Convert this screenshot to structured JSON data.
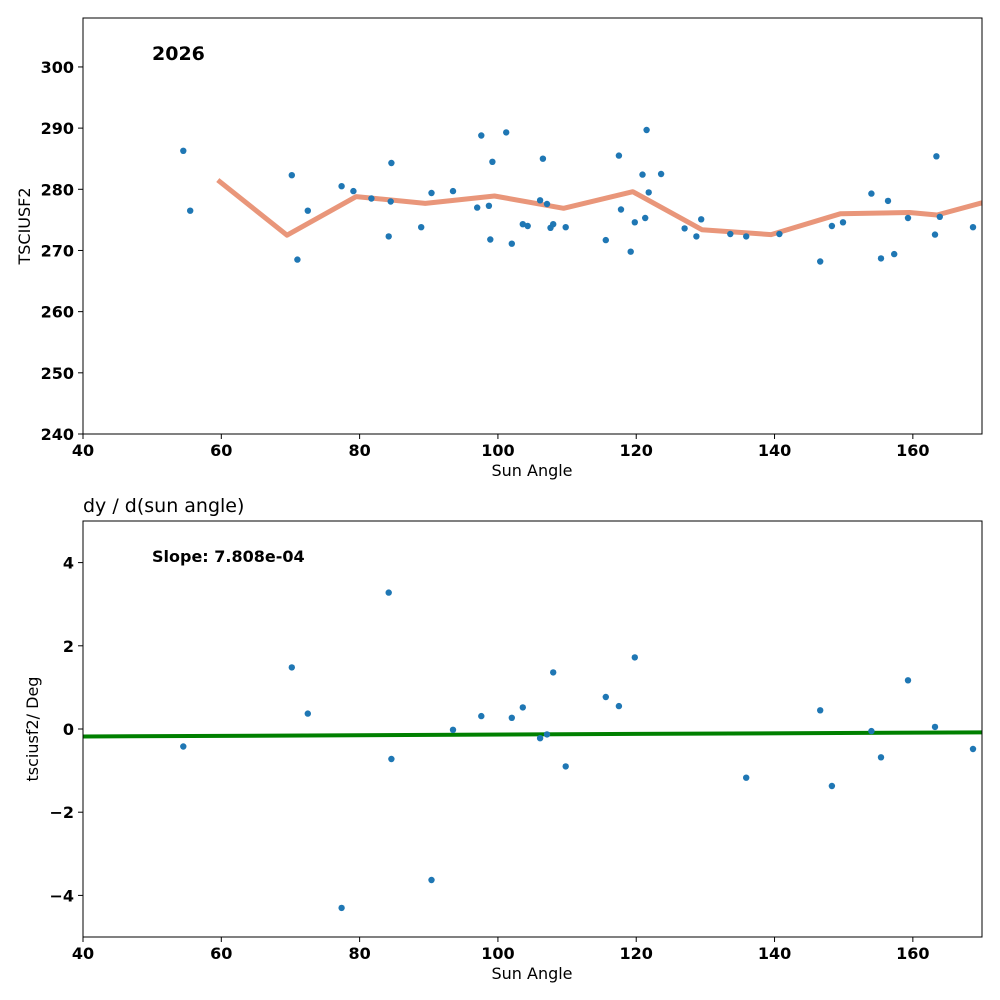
{
  "chart_data": [
    {
      "type": "scatter",
      "annotation": "2026",
      "title": "",
      "xlabel": "Sun Angle",
      "ylabel": "TSCIUSF2",
      "xlim": [
        40,
        170
      ],
      "ylim": [
        240,
        308
      ],
      "xticks": [
        40,
        60,
        80,
        100,
        120,
        140,
        160
      ],
      "yticks": [
        240,
        250,
        260,
        270,
        280,
        290,
        300
      ],
      "point_color": "#1f77b4",
      "line_color": "#e9967a",
      "points": [
        [
          54.5,
          286.3
        ],
        [
          55.5,
          276.5
        ],
        [
          70.2,
          282.3
        ],
        [
          71.0,
          268.5
        ],
        [
          72.5,
          276.5
        ],
        [
          77.4,
          280.5
        ],
        [
          79.1,
          279.7
        ],
        [
          81.7,
          278.5
        ],
        [
          84.2,
          272.3
        ],
        [
          84.5,
          278.0
        ],
        [
          84.6,
          284.3
        ],
        [
          88.9,
          273.8
        ],
        [
          90.4,
          279.4
        ],
        [
          93.5,
          279.7
        ],
        [
          97.0,
          277.0
        ],
        [
          97.6,
          288.8
        ],
        [
          98.7,
          277.3
        ],
        [
          98.9,
          271.8
        ],
        [
          99.2,
          284.5
        ],
        [
          101.2,
          289.3
        ],
        [
          102.0,
          271.1
        ],
        [
          103.6,
          274.3
        ],
        [
          104.3,
          274.0
        ],
        [
          106.1,
          278.2
        ],
        [
          106.5,
          285.0
        ],
        [
          107.1,
          277.6
        ],
        [
          107.6,
          273.7
        ],
        [
          108.0,
          274.3
        ],
        [
          109.8,
          273.8
        ],
        [
          115.6,
          271.7
        ],
        [
          117.5,
          285.5
        ],
        [
          117.8,
          276.7
        ],
        [
          119.2,
          269.8
        ],
        [
          119.8,
          274.6
        ],
        [
          120.9,
          282.4
        ],
        [
          121.3,
          275.3
        ],
        [
          121.5,
          289.7
        ],
        [
          121.8,
          279.5
        ],
        [
          123.6,
          282.5
        ],
        [
          127.0,
          273.6
        ],
        [
          128.7,
          272.3
        ],
        [
          129.4,
          275.1
        ],
        [
          133.6,
          272.7
        ],
        [
          135.9,
          272.3
        ],
        [
          140.7,
          272.7
        ],
        [
          146.6,
          268.2
        ],
        [
          148.3,
          274.0
        ],
        [
          149.9,
          274.6
        ],
        [
          154.0,
          279.3
        ],
        [
          155.4,
          268.7
        ],
        [
          156.4,
          278.1
        ],
        [
          157.3,
          269.4
        ],
        [
          159.3,
          275.3
        ],
        [
          163.2,
          272.6
        ],
        [
          163.4,
          285.4
        ],
        [
          163.9,
          275.5
        ],
        [
          168.7,
          273.8
        ]
      ],
      "line": [
        [
          59.5,
          281.5
        ],
        [
          69.5,
          272.5
        ],
        [
          79.5,
          278.8
        ],
        [
          89.5,
          277.7
        ],
        [
          99.5,
          278.9
        ],
        [
          109.5,
          276.9
        ],
        [
          119.5,
          279.6
        ],
        [
          129.5,
          273.4
        ],
        [
          139.5,
          272.6
        ],
        [
          149.5,
          276.0
        ],
        [
          159.5,
          276.2
        ],
        [
          163.5,
          275.8
        ],
        [
          170,
          277.8
        ]
      ]
    },
    {
      "type": "scatter",
      "title": "dy / d(sun angle)",
      "annotation": "Slope: 7.808e-04",
      "xlabel": "Sun Angle",
      "ylabel": "tsciusf2/ Deg",
      "xlim": [
        40,
        170
      ],
      "ylim": [
        -5,
        5
      ],
      "xticks": [
        40,
        60,
        80,
        100,
        120,
        140,
        160
      ],
      "yticks": [
        -4,
        -2,
        0,
        2,
        4
      ],
      "ytick_labels": [
        "−4",
        "−2",
        "0",
        "2",
        "4"
      ],
      "point_color": "#1f77b4",
      "line_color": "#008000",
      "points": [
        [
          54.5,
          -0.42
        ],
        [
          70.2,
          1.48
        ],
        [
          72.5,
          0.37
        ],
        [
          77.4,
          -4.3
        ],
        [
          84.2,
          3.28
        ],
        [
          84.6,
          -0.72
        ],
        [
          90.4,
          -3.63
        ],
        [
          93.5,
          -0.02
        ],
        [
          97.6,
          0.31
        ],
        [
          102.0,
          0.27
        ],
        [
          103.6,
          0.52
        ],
        [
          106.1,
          -0.22
        ],
        [
          107.1,
          -0.13
        ],
        [
          108.0,
          1.36
        ],
        [
          109.8,
          -0.9
        ],
        [
          115.6,
          0.77
        ],
        [
          117.5,
          0.55
        ],
        [
          119.8,
          1.72
        ],
        [
          135.9,
          -1.17
        ],
        [
          146.6,
          0.45
        ],
        [
          148.3,
          -1.37
        ],
        [
          154.0,
          -0.05
        ],
        [
          155.4,
          -0.68
        ],
        [
          159.3,
          1.17
        ],
        [
          163.2,
          0.05
        ],
        [
          168.7,
          -0.48
        ]
      ],
      "fit_line": [
        [
          40,
          -0.18
        ],
        [
          170,
          -0.08
        ]
      ]
    }
  ]
}
